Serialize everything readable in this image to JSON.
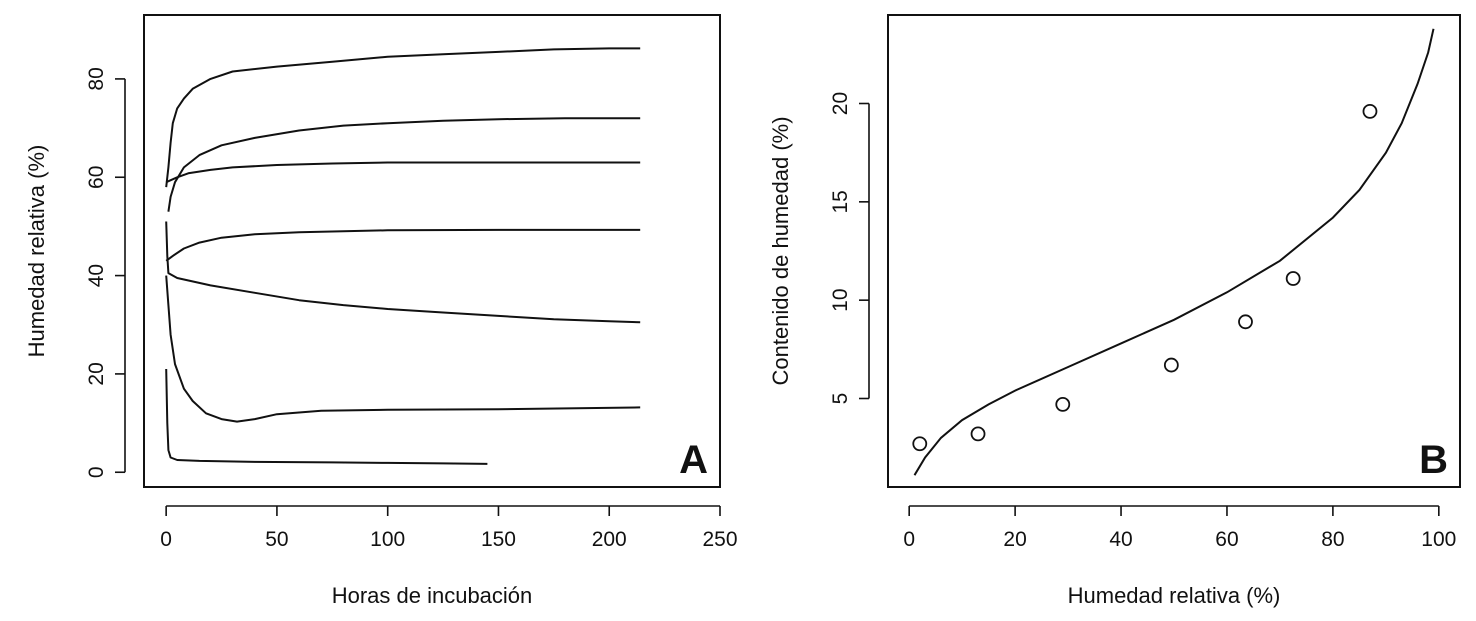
{
  "chart_data": [
    {
      "type": "line",
      "panel_label": "A",
      "xlabel": "Horas de incubación",
      "ylabel": "Humedad relativa (%)",
      "xlim": [
        -10,
        250
      ],
      "ylim": [
        -3,
        93
      ],
      "x_ticks": [
        0,
        50,
        100,
        150,
        200,
        250
      ],
      "y_ticks": [
        0,
        20,
        40,
        60,
        80
      ],
      "grid": false,
      "series": [
        {
          "points": [
            [
              0,
              58
            ],
            [
              1,
              62
            ],
            [
              2,
              67
            ],
            [
              3,
              71
            ],
            [
              5,
              74
            ],
            [
              8,
              76
            ],
            [
              12,
              78
            ],
            [
              20,
              80
            ],
            [
              30,
              81.5
            ],
            [
              50,
              82.5
            ],
            [
              75,
              83.5
            ],
            [
              100,
              84.5
            ],
            [
              125,
              85
            ],
            [
              150,
              85.5
            ],
            [
              175,
              86
            ],
            [
              200,
              86.2
            ],
            [
              214,
              86.2
            ]
          ]
        },
        {
          "points": [
            [
              1,
              53
            ],
            [
              2,
              56
            ],
            [
              4,
              59
            ],
            [
              8,
              62
            ],
            [
              15,
              64.5
            ],
            [
              25,
              66.5
            ],
            [
              40,
              68
            ],
            [
              60,
              69.5
            ],
            [
              80,
              70.5
            ],
            [
              100,
              71
            ],
            [
              125,
              71.5
            ],
            [
              150,
              71.8
            ],
            [
              180,
              72
            ],
            [
              214,
              72
            ]
          ]
        },
        {
          "points": [
            [
              0,
              59
            ],
            [
              5,
              60
            ],
            [
              10,
              60.8
            ],
            [
              20,
              61.5
            ],
            [
              30,
              62
            ],
            [
              50,
              62.5
            ],
            [
              75,
              62.8
            ],
            [
              100,
              63
            ],
            [
              150,
              63
            ],
            [
              214,
              63
            ]
          ]
        },
        {
          "points": [
            [
              0,
              43
            ],
            [
              3,
              44
            ],
            [
              8,
              45.5
            ],
            [
              15,
              46.7
            ],
            [
              25,
              47.7
            ],
            [
              40,
              48.4
            ],
            [
              60,
              48.8
            ],
            [
              80,
              49
            ],
            [
              100,
              49.2
            ],
            [
              150,
              49.3
            ],
            [
              214,
              49.3
            ]
          ]
        },
        {
          "points": [
            [
              0,
              51
            ],
            [
              0.5,
              44
            ],
            [
              1,
              40.5
            ],
            [
              5,
              39.5
            ],
            [
              20,
              38
            ],
            [
              40,
              36.5
            ],
            [
              60,
              35
            ],
            [
              80,
              34
            ],
            [
              100,
              33.2
            ],
            [
              125,
              32.5
            ],
            [
              150,
              31.8
            ],
            [
              175,
              31.1
            ],
            [
              200,
              30.7
            ],
            [
              214,
              30.5
            ]
          ]
        },
        {
          "points": [
            [
              0,
              40
            ],
            [
              1,
              34
            ],
            [
              2,
              28
            ],
            [
              4,
              22
            ],
            [
              8,
              17
            ],
            [
              12,
              14.5
            ],
            [
              18,
              12
            ],
            [
              25,
              10.8
            ],
            [
              32,
              10.3
            ],
            [
              40,
              10.8
            ],
            [
              50,
              11.8
            ],
            [
              70,
              12.5
            ],
            [
              100,
              12.7
            ],
            [
              150,
              12.8
            ],
            [
              214,
              13.2
            ]
          ]
        },
        {
          "points": [
            [
              0,
              21
            ],
            [
              0.5,
              10
            ],
            [
              1,
              4.5
            ],
            [
              2,
              3
            ],
            [
              5,
              2.5
            ],
            [
              15,
              2.3
            ],
            [
              40,
              2.1
            ],
            [
              75,
              2
            ],
            [
              100,
              1.9
            ],
            [
              125,
              1.8
            ],
            [
              145,
              1.7
            ]
          ]
        }
      ]
    },
    {
      "type": "scatter",
      "panel_label": "B",
      "xlabel": "Humedad relativa (%)",
      "ylabel": "Contenido de humedad (%)",
      "xlim": [
        -4,
        104
      ],
      "ylim": [
        0.5,
        24.5
      ],
      "x_ticks": [
        0,
        20,
        40,
        60,
        80,
        100
      ],
      "y_ticks": [
        5,
        10,
        15,
        20
      ],
      "grid": false,
      "points": [
        {
          "x": 2,
          "y": 2.7
        },
        {
          "x": 13,
          "y": 3.2
        },
        {
          "x": 29,
          "y": 4.7
        },
        {
          "x": 49.5,
          "y": 6.7
        },
        {
          "x": 63.5,
          "y": 8.9
        },
        {
          "x": 72.5,
          "y": 11.1
        },
        {
          "x": 87,
          "y": 19.6
        }
      ],
      "fitted_curve": [
        [
          1,
          1.1
        ],
        [
          3,
          2.0
        ],
        [
          6,
          3.0
        ],
        [
          10,
          3.9
        ],
        [
          15,
          4.7
        ],
        [
          20,
          5.4
        ],
        [
          30,
          6.6
        ],
        [
          40,
          7.8
        ],
        [
          50,
          9.0
        ],
        [
          60,
          10.4
        ],
        [
          70,
          12.0
        ],
        [
          80,
          14.2
        ],
        [
          85,
          15.6
        ],
        [
          90,
          17.5
        ],
        [
          93,
          19.0
        ],
        [
          96,
          21.0
        ],
        [
          98,
          22.6
        ],
        [
          99,
          23.8
        ]
      ]
    }
  ]
}
